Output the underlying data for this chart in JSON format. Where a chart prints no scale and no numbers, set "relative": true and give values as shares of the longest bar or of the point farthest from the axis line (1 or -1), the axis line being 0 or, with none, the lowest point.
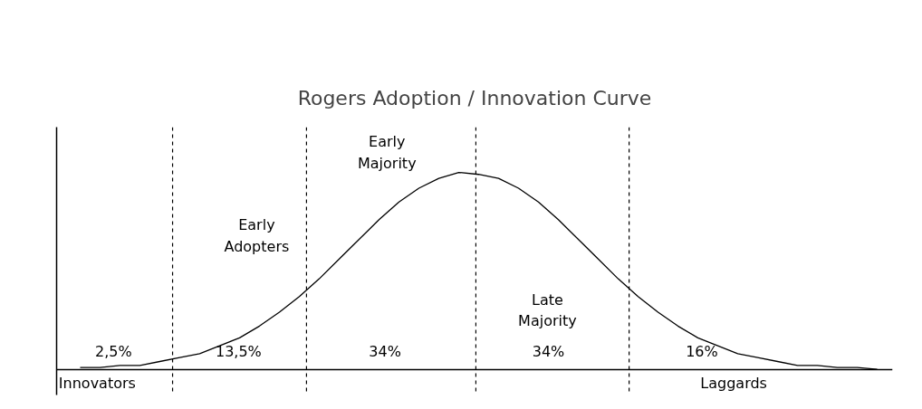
{
  "chart_data": {
    "type": "line",
    "title": "Rogers Adoption / Innovation Curve",
    "relative": true,
    "tick_labels": false,
    "marker": "none",
    "line_style": "solid",
    "categories": [
      null,
      null,
      null,
      null,
      null,
      null,
      null,
      null,
      null,
      null,
      null,
      null,
      null,
      null,
      null,
      null,
      null,
      null,
      null,
      null,
      null,
      null,
      null,
      null,
      null,
      null,
      null,
      null,
      null,
      null,
      null,
      null,
      null,
      null,
      null,
      null,
      null,
      null,
      null,
      null,
      null
    ],
    "series": [
      {
        "color": "#000000",
        "values": [
          0.01,
          0.01,
          0.02,
          0.02,
          0.04,
          0.06,
          0.08,
          0.12,
          0.16,
          0.22,
          0.29,
          0.37,
          0.46,
          0.56,
          0.66,
          0.76,
          0.85,
          0.92,
          0.97,
          1.0,
          0.99,
          0.97,
          0.92,
          0.85,
          0.76,
          0.66,
          0.56,
          0.46,
          0.37,
          0.29,
          0.22,
          0.16,
          0.12,
          0.08,
          0.06,
          0.04,
          0.02,
          0.02,
          0.01,
          0.01,
          0.0
        ]
      }
    ],
    "annotations": [
      "2,5%",
      "13,5%",
      "34%",
      "34%",
      "16%",
      "Innovators",
      "Laggards",
      "Early\nAdopters",
      "Early\nMajority",
      "Late\nMajority"
    ]
  }
}
